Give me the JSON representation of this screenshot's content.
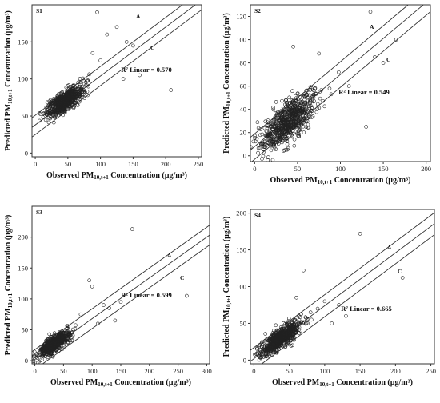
{
  "chart_data": [
    {
      "type": "scatter",
      "panel_label": "S1",
      "xlabel_main": "Observed PM",
      "xlabel_sub": "10,t+1",
      "xlabel_tail": " Concentration (µg/m³)",
      "ylabel_main": "Predicted PM",
      "ylabel_sub": "10,t+1",
      "ylabel_tail": " Concentration (µg/m³)",
      "xlim": [
        -5,
        255
      ],
      "ylim": [
        -5,
        200
      ],
      "xticks": [
        0,
        50,
        100,
        150,
        200,
        250
      ],
      "yticks": [
        0,
        50,
        100,
        150
      ],
      "r2_text": "R² Linear = 0.570",
      "line_labels": [
        "A",
        "C"
      ],
      "fit_line": {
        "intercept": 38,
        "slope": 0.66
      },
      "band_offset": 13,
      "cluster": {
        "cx": 45,
        "cy": 70,
        "sx": 14,
        "sy": 10,
        "n": 700,
        "corr": 0.75
      },
      "outliers": [
        [
          95,
          190
        ],
        [
          110,
          160
        ],
        [
          125,
          170
        ],
        [
          140,
          150
        ],
        [
          150,
          145
        ],
        [
          208,
          85
        ],
        [
          100,
          125
        ],
        [
          88,
          135
        ],
        [
          160,
          105
        ],
        [
          135,
          100
        ]
      ]
    },
    {
      "type": "scatter",
      "panel_label": "S2",
      "xlabel_main": "Observed PM",
      "xlabel_sub": "10,t+1",
      "xlabel_tail": " Concentration (µg/m³)",
      "ylabel_main": "Predicted PM",
      "ylabel_sub": "10,t+1",
      "ylabel_tail": " Concentration (µg/m³)",
      "xlim": [
        -5,
        205
      ],
      "ylim": [
        -5,
        130
      ],
      "xticks": [
        0,
        50,
        100,
        150,
        200
      ],
      "yticks": [
        0,
        20,
        40,
        60,
        80,
        100,
        120
      ],
      "r2_text": "R² Linear = 0.549",
      "line_labels": [
        "A",
        "C"
      ],
      "fit_line": {
        "intercept": 8,
        "slope": 0.62
      },
      "band_offset": 11,
      "cluster": {
        "cx": 40,
        "cy": 30,
        "sx": 15,
        "sy": 12,
        "n": 750,
        "corr": 0.72
      },
      "outliers": [
        [
          135,
          124
        ],
        [
          165,
          100
        ],
        [
          140,
          85
        ],
        [
          150,
          80
        ],
        [
          130,
          25
        ],
        [
          98,
          72
        ],
        [
          45,
          94
        ],
        [
          75,
          88
        ],
        [
          110,
          60
        ],
        [
          38,
          10
        ]
      ]
    },
    {
      "type": "scatter",
      "panel_label": "S3",
      "xlabel_main": "Observed PM",
      "xlabel_sub": "10,t+1",
      "xlabel_tail": " Concentration (µg/m³)",
      "ylabel_main": "Predicted PM",
      "ylabel_sub": "10,t+1",
      "ylabel_tail": " Concentration (µg/m³)",
      "xlim": [
        -5,
        305
      ],
      "ylim": [
        -5,
        250
      ],
      "xticks": [
        0,
        50,
        100,
        150,
        200,
        250,
        300
      ],
      "yticks": [
        0,
        50,
        100,
        150,
        200
      ],
      "r2_text": "R² Linear = 0.599",
      "line_labels": [
        "A",
        "C"
      ],
      "fit_line": {
        "intercept": 2,
        "slope": 0.66
      },
      "band_offset": 16,
      "cluster": {
        "cx": 35,
        "cy": 28,
        "sx": 13,
        "sy": 10,
        "n": 750,
        "corr": 0.78
      },
      "outliers": [
        [
          170,
          213
        ],
        [
          95,
          130
        ],
        [
          100,
          120
        ],
        [
          120,
          90
        ],
        [
          150,
          95
        ],
        [
          265,
          105
        ],
        [
          80,
          75
        ],
        [
          130,
          85
        ],
        [
          110,
          60
        ],
        [
          140,
          65
        ]
      ]
    },
    {
      "type": "scatter",
      "panel_label": "S4",
      "xlabel_main": "Observed PM",
      "xlabel_sub": "10,t+1",
      "xlabel_tail": " Concentration (µg/m³)",
      "ylabel_main": "Predicted PM",
      "ylabel_sub": "10,t+1",
      "ylabel_tail": " Concentration (µg/m³)",
      "xlim": [
        -5,
        255
      ],
      "ylim": [
        -5,
        205
      ],
      "xticks": [
        0,
        50,
        100,
        150,
        200,
        250
      ],
      "yticks": [
        0,
        50,
        100,
        150,
        200
      ],
      "r2_text": "R² Linear = 0.665",
      "line_labels": [
        "A",
        "C"
      ],
      "fit_line": {
        "intercept": 2,
        "slope": 0.72
      },
      "band_offset": 15,
      "cluster": {
        "cx": 38,
        "cy": 30,
        "sx": 14,
        "sy": 11,
        "n": 750,
        "corr": 0.8
      },
      "outliers": [
        [
          150,
          172
        ],
        [
          70,
          122
        ],
        [
          210,
          112
        ],
        [
          100,
          80
        ],
        [
          90,
          70
        ],
        [
          120,
          75
        ],
        [
          130,
          60
        ],
        [
          80,
          65
        ],
        [
          60,
          85
        ],
        [
          110,
          50
        ]
      ]
    }
  ]
}
